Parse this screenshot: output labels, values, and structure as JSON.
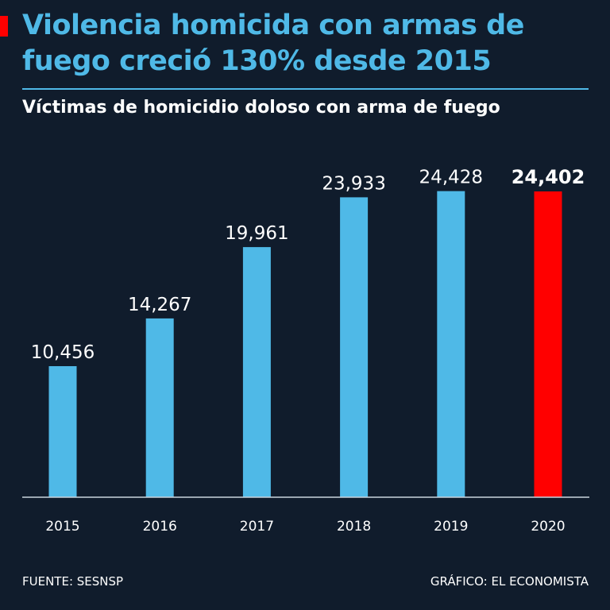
{
  "header": {
    "title": "Violencia homicida con armas de fuego creció 130% desde 2015",
    "subtitle": "Víctimas de homicidio doloso con arma de fuego"
  },
  "footer": {
    "source": "FUENTE: SESNSP",
    "credit": "GRÁFICO: EL ECONOMISTA"
  },
  "colors": {
    "background": "#101c2c",
    "bar": "#4fb9e7",
    "highlight_bar": "#ff0000",
    "accent": "#ff0000",
    "text": "#ffffff"
  },
  "chart_data": {
    "type": "bar",
    "title": "Víctimas de homicidio doloso con arma de fuego",
    "categories": [
      "2015",
      "2016",
      "2017",
      "2018",
      "2019",
      "2020"
    ],
    "values": [
      10456,
      14267,
      19961,
      23933,
      24428,
      24402
    ],
    "value_labels": [
      "10,456",
      "14,267",
      "19,961",
      "23,933",
      "24,428",
      "24,402"
    ],
    "highlight_index": 5,
    "xlabel": "",
    "ylabel": "",
    "ylim": [
      0,
      27000
    ],
    "grid": false
  }
}
